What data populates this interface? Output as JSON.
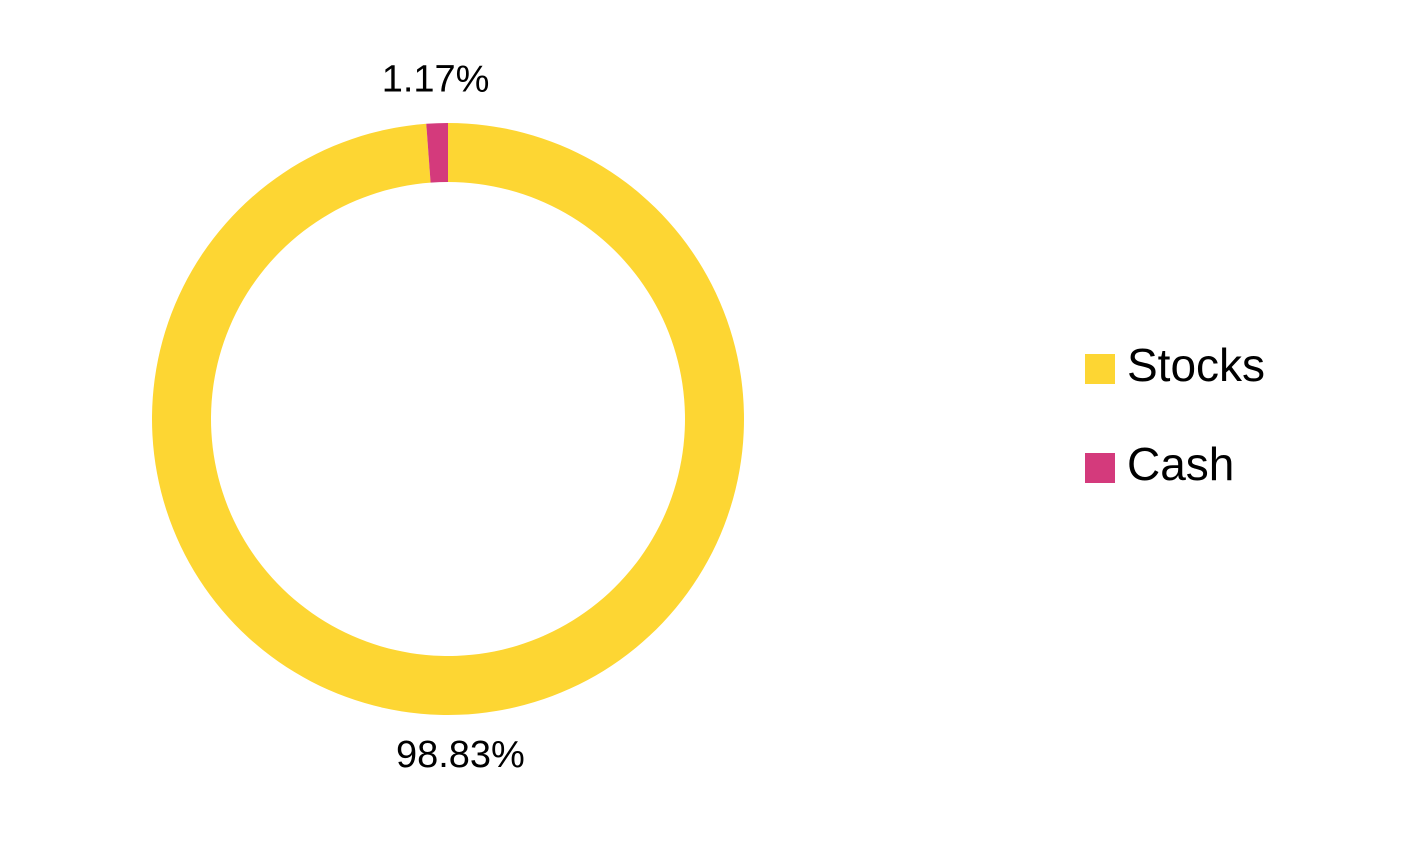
{
  "chart_data": {
    "type": "donut",
    "categories": [
      "Stocks",
      "Cash"
    ],
    "values": [
      98.83,
      1.17
    ],
    "value_labels": [
      "98.83%",
      "1.17%"
    ],
    "colors": [
      "#FDD633",
      "#D43A7C"
    ],
    "legend": "right"
  }
}
